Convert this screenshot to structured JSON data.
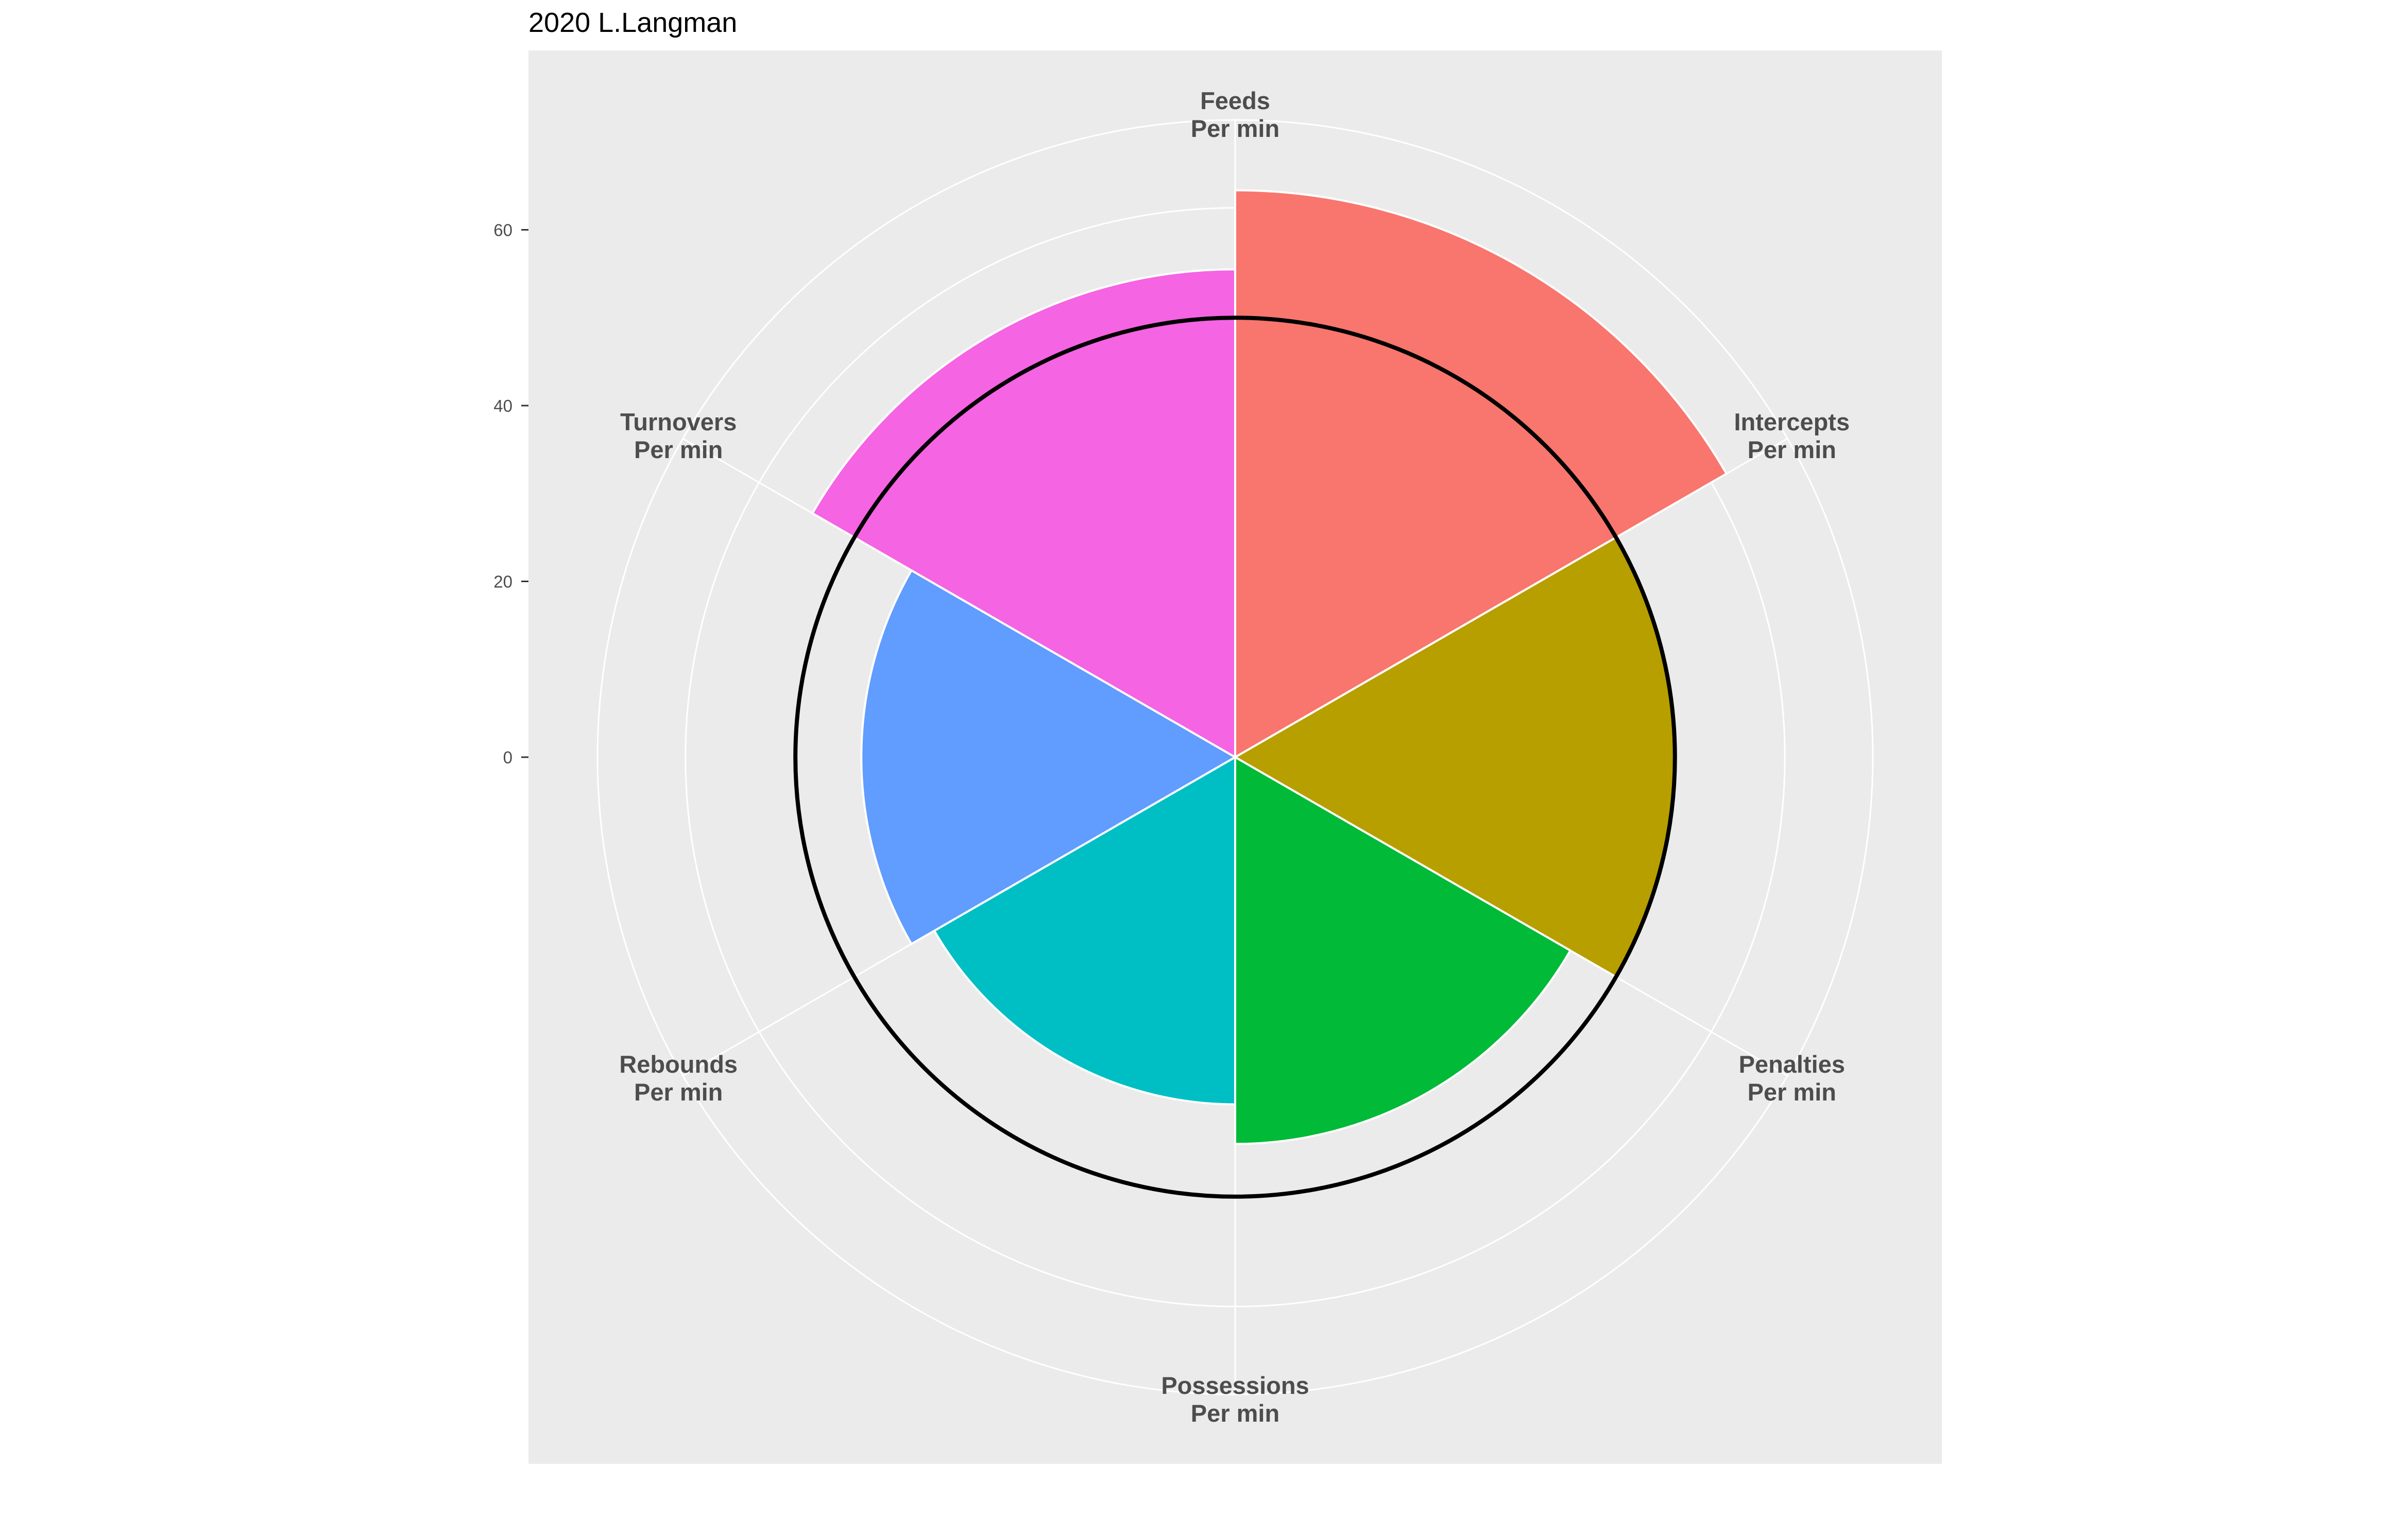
{
  "chart_data": {
    "type": "polar-bar",
    "title": "2020 L.Langman",
    "categories": [
      [
        "Feeds",
        "Per min"
      ],
      [
        "Intercepts",
        "Per min"
      ],
      [
        "Penalties",
        "Per min"
      ],
      [
        "Possessions",
        "Per min"
      ],
      [
        "Rebounds",
        "Per min"
      ],
      [
        "Turnovers",
        "Per min"
      ]
    ],
    "values": [
      64.5,
      50,
      44,
      39.5,
      42.5,
      55.5
    ],
    "colors": [
      "#F8766D",
      "#B79F00",
      "#00BA38",
      "#00BFC4",
      "#619CFF",
      "#F564E3"
    ],
    "reference_circle": 50,
    "y_ticks": [
      0,
      20,
      40,
      60
    ],
    "y_tick_labels": [
      "0",
      "20",
      "40",
      "60"
    ],
    "ylim": [
      0,
      72.5
    ],
    "radial_grid": [
      12.5,
      25,
      37.5,
      50,
      62.5,
      72.5
    ],
    "background": "#EBEBEB",
    "grid_color": "#FFFFFF",
    "legend": "none"
  }
}
